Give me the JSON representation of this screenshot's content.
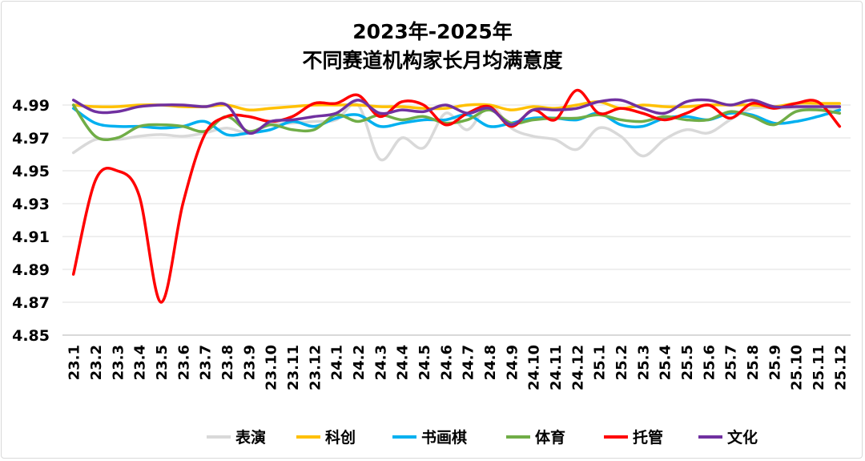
{
  "chart_data": {
    "type": "line",
    "title": [
      "2023年-2025年",
      "不同赛道机构家长月均满意度"
    ],
    "xlabel": "",
    "ylabel": "",
    "ylim": [
      4.85,
      4.99
    ],
    "yticks": [
      "4.99",
      "4.97",
      "4.95",
      "4.93",
      "4.91",
      "4.89",
      "4.87",
      "4.85"
    ],
    "grid": true,
    "legend_position": "bottom",
    "smooth": true,
    "categories": [
      "23.1",
      "23.2",
      "23.3",
      "23.4",
      "23.5",
      "23.6",
      "23.7",
      "23.8",
      "23.9",
      "23.10",
      "23.11",
      "23.12",
      "24.1",
      "24.2",
      "24.3",
      "24.4",
      "24.5",
      "24.6",
      "24.7",
      "24.8",
      "24.9",
      "24.10",
      "24.11",
      "24.12",
      "25.1",
      "25.2",
      "25.3",
      "25.4",
      "25.5",
      "25.6",
      "25.7",
      "25.8",
      "25.9",
      "25.10",
      "25.11",
      "25.12"
    ],
    "series": [
      {
        "name": "表演",
        "color": "#d9d9d9",
        "values": [
          4.961,
          4.969,
          4.969,
          4.971,
          4.972,
          4.971,
          4.973,
          4.976,
          4.973,
          4.978,
          4.979,
          4.98,
          4.981,
          4.99,
          4.957,
          4.97,
          4.964,
          4.985,
          4.975,
          4.99,
          4.976,
          4.971,
          4.969,
          4.963,
          4.976,
          4.971,
          4.959,
          4.969,
          4.975,
          4.973,
          4.981,
          4.988,
          4.988,
          4.988,
          4.988,
          4.988
        ]
      },
      {
        "name": "科创",
        "color": "#ffc000",
        "values": [
          4.99,
          4.989,
          4.989,
          4.99,
          4.99,
          4.989,
          4.989,
          4.99,
          4.987,
          4.988,
          4.989,
          4.99,
          4.99,
          4.99,
          4.989,
          4.989,
          4.988,
          4.988,
          4.99,
          4.99,
          4.987,
          4.989,
          4.988,
          4.99,
          4.992,
          4.988,
          4.99,
          4.989,
          4.989,
          4.99,
          4.99,
          4.99,
          4.989,
          4.991,
          4.991,
          4.991
        ]
      },
      {
        "name": "书画棋",
        "color": "#00b0f0",
        "values": [
          4.988,
          4.979,
          4.977,
          4.977,
          4.976,
          4.977,
          4.98,
          4.972,
          4.973,
          4.975,
          4.98,
          4.977,
          4.982,
          4.984,
          4.977,
          4.979,
          4.981,
          4.981,
          4.984,
          4.977,
          4.979,
          4.982,
          4.982,
          4.981,
          4.985,
          4.978,
          4.977,
          4.982,
          4.983,
          4.981,
          4.985,
          4.984,
          4.979,
          4.98,
          4.983,
          4.987
        ]
      },
      {
        "name": "体育",
        "color": "#70ad47",
        "values": [
          4.99,
          4.971,
          4.97,
          4.977,
          4.978,
          4.977,
          4.974,
          4.983,
          4.974,
          4.978,
          4.975,
          4.975,
          4.984,
          4.98,
          4.984,
          4.981,
          4.983,
          4.979,
          4.981,
          4.987,
          4.979,
          4.981,
          4.982,
          4.982,
          4.984,
          4.981,
          4.98,
          4.983,
          4.981,
          4.981,
          4.986,
          4.983,
          4.978,
          4.986,
          4.987,
          4.985
        ]
      },
      {
        "name": "托管",
        "color": "#ff0000",
        "values": [
          4.887,
          4.944,
          4.95,
          4.935,
          4.87,
          4.93,
          4.972,
          4.983,
          4.983,
          4.98,
          4.983,
          4.991,
          4.991,
          4.996,
          4.983,
          4.992,
          4.99,
          4.978,
          4.985,
          4.989,
          4.977,
          4.987,
          4.981,
          4.999,
          4.985,
          4.988,
          4.985,
          4.981,
          4.985,
          4.99,
          4.982,
          4.991,
          4.988,
          4.991,
          4.992,
          4.977
        ]
      },
      {
        "name": "文化",
        "color": "#7030a0",
        "values": [
          4.993,
          4.986,
          4.986,
          4.989,
          4.99,
          4.99,
          4.989,
          4.99,
          4.973,
          4.98,
          4.981,
          4.983,
          4.985,
          4.993,
          4.985,
          4.987,
          4.986,
          4.99,
          4.985,
          4.988,
          4.978,
          4.987,
          4.987,
          4.988,
          4.992,
          4.993,
          4.988,
          4.985,
          4.992,
          4.993,
          4.99,
          4.993,
          4.989,
          4.989,
          4.989,
          4.989
        ]
      }
    ]
  }
}
